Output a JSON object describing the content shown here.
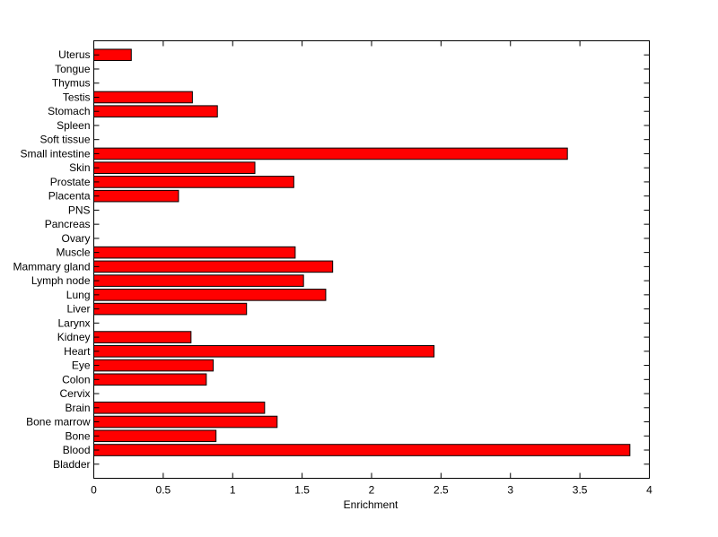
{
  "chart_data": {
    "type": "bar",
    "orientation": "horizontal",
    "title": "",
    "xlabel": "Enrichment",
    "ylabel": "",
    "xlim": [
      0,
      4
    ],
    "x_ticks": [
      "0",
      "0.5",
      "1",
      "1.5",
      "2",
      "2.5",
      "3",
      "3.5",
      "4"
    ],
    "grid": false,
    "bar_color": "#ff0000",
    "categories": [
      "Bladder",
      "Blood",
      "Bone",
      "Bone marrow",
      "Brain",
      "Cervix",
      "Colon",
      "Eye",
      "Heart",
      "Kidney",
      "Larynx",
      "Liver",
      "Lung",
      "Lymph node",
      "Mammary gland",
      "Muscle",
      "Ovary",
      "Pancreas",
      "PNS",
      "Placenta",
      "Prostate",
      "Skin",
      "Small intestine",
      "Soft tissue",
      "Spleen",
      "Stomach",
      "Testis",
      "Thymus",
      "Tongue",
      "Uterus"
    ],
    "values": [
      0,
      3.86,
      0.88,
      1.32,
      1.23,
      0,
      0.81,
      0.86,
      2.45,
      0.7,
      0,
      1.1,
      1.67,
      1.51,
      1.72,
      1.45,
      0,
      0,
      0,
      0.61,
      1.44,
      1.16,
      3.41,
      0,
      0,
      0.89,
      0.71,
      0,
      0,
      0.27
    ]
  }
}
